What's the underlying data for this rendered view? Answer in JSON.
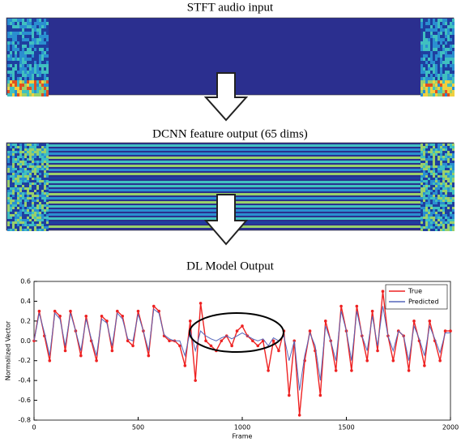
{
  "figure": {
    "stft_title": "STFT audio input",
    "dcnn_title": "DCNN feature output (65 dims)"
  },
  "chart_data": {
    "type": "line",
    "title": "DL Model Output",
    "xlabel": "Frame",
    "ylabel": "Normalized Vector",
    "x": [
      0,
      25,
      50,
      75,
      100,
      125,
      150,
      175,
      200,
      225,
      250,
      275,
      300,
      325,
      350,
      375,
      400,
      425,
      450,
      475,
      500,
      525,
      550,
      575,
      600,
      625,
      650,
      675,
      700,
      725,
      750,
      775,
      800,
      825,
      850,
      875,
      900,
      925,
      950,
      975,
      1000,
      1025,
      1050,
      1075,
      1100,
      1125,
      1150,
      1175,
      1200,
      1225,
      1250,
      1275,
      1300,
      1325,
      1350,
      1375,
      1400,
      1425,
      1450,
      1475,
      1500,
      1525,
      1550,
      1575,
      1600,
      1625,
      1650,
      1675,
      1700,
      1725,
      1750,
      1775,
      1800,
      1825,
      1850,
      1875,
      1900,
      1925,
      1950,
      1975,
      2000
    ],
    "series": [
      {
        "name": "True",
        "color": "#ee2222",
        "values": [
          0.0,
          0.3,
          0.05,
          -0.2,
          0.3,
          0.25,
          -0.1,
          0.3,
          0.1,
          -0.15,
          0.25,
          0.0,
          -0.2,
          0.25,
          0.2,
          -0.1,
          0.3,
          0.25,
          0.0,
          -0.05,
          0.3,
          0.1,
          -0.15,
          0.35,
          0.3,
          0.05,
          0.0,
          0.0,
          -0.05,
          -0.25,
          0.2,
          -0.4,
          0.38,
          0.0,
          -0.05,
          -0.1,
          0.0,
          0.05,
          -0.05,
          0.1,
          0.15,
          0.05,
          0.0,
          -0.05,
          0.0,
          -0.3,
          0.0,
          -0.1,
          0.1,
          -0.55,
          0.0,
          -0.75,
          -0.2,
          0.1,
          -0.1,
          -0.55,
          0.2,
          0.0,
          -0.3,
          0.35,
          0.1,
          -0.3,
          0.35,
          0.05,
          -0.2,
          0.3,
          -0.1,
          0.5,
          0.05,
          -0.2,
          0.1,
          0.05,
          -0.3,
          0.2,
          0.0,
          -0.25,
          0.2,
          0.0,
          -0.2,
          0.1,
          0.1
        ]
      },
      {
        "name": "Predicted",
        "color": "#5566bb",
        "values": [
          0.0,
          0.28,
          0.08,
          -0.15,
          0.28,
          0.22,
          -0.05,
          0.28,
          0.1,
          -0.1,
          0.22,
          0.02,
          -0.15,
          0.22,
          0.18,
          -0.05,
          0.28,
          0.22,
          0.02,
          0.0,
          0.27,
          0.1,
          -0.1,
          0.32,
          0.28,
          0.06,
          0.02,
          0.0,
          0.0,
          -0.15,
          0.1,
          -0.1,
          0.1,
          0.05,
          0.02,
          0.0,
          0.03,
          0.05,
          0.02,
          0.05,
          0.08,
          0.05,
          0.02,
          0.0,
          0.02,
          -0.05,
          0.03,
          0.0,
          0.05,
          -0.2,
          0.0,
          -0.5,
          -0.15,
          0.08,
          -0.05,
          -0.4,
          0.15,
          0.0,
          -0.2,
          0.3,
          0.1,
          -0.2,
          0.3,
          0.05,
          -0.1,
          0.25,
          -0.05,
          0.35,
          0.05,
          -0.1,
          0.1,
          0.05,
          -0.2,
          0.15,
          0.02,
          -0.15,
          0.15,
          0.02,
          -0.12,
          0.08,
          0.08
        ]
      }
    ],
    "xlim": [
      0,
      2000
    ],
    "xticks": [
      0,
      500,
      1000,
      1500,
      2000
    ],
    "ylim": [
      -0.8,
      0.6
    ],
    "yticks": [
      -0.8,
      -0.6,
      -0.4,
      -0.2,
      {
        "value": 0,
        "label": "0.0"
      },
      0.2,
      0.4,
      0.6
    ],
    "legend": "upper right"
  }
}
